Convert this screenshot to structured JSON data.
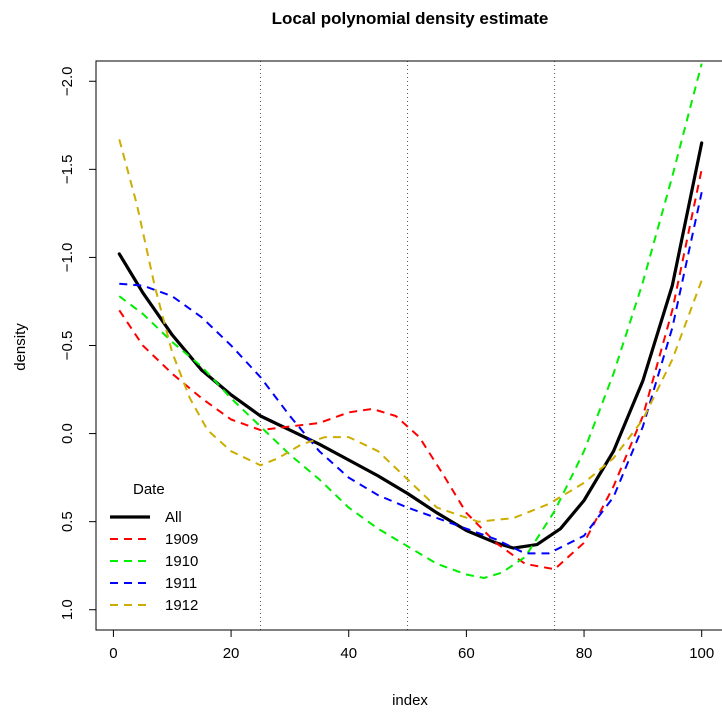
{
  "chart_data": {
    "type": "line",
    "title": "Local polynomial density estimate",
    "xlabel": "index",
    "ylabel": "density",
    "xlim": [
      -2.96,
      103.96
    ],
    "ylim": [
      1.115,
      -2.115
    ],
    "y_reversed": true,
    "grid": false,
    "x_ticks": [
      0,
      20,
      40,
      60,
      80,
      100
    ],
    "y_ticks": [
      -2.0,
      -1.5,
      -1.0,
      -0.5,
      0.0,
      0.5,
      1.0
    ],
    "x_tick_labels": [
      "0",
      "20",
      "40",
      "60",
      "80",
      "100"
    ],
    "y_tick_labels": [
      "−2.0",
      "−1.5",
      "−1.0",
      "−0.5",
      "0.0",
      "0.5",
      "1.0"
    ],
    "vlines": [
      25,
      50,
      75
    ],
    "legend": {
      "title": "Date",
      "position": "bottom-left",
      "entries": [
        "All",
        "1909",
        "1910",
        "1911",
        "1912"
      ]
    },
    "colors": {
      "All": "#000000",
      "1909": "#ff0000",
      "1910": "#00ee00",
      "1911": "#0000ff",
      "1912": "#cdad00"
    },
    "series": [
      {
        "name": "All",
        "style": "solid",
        "points": [
          [
            1,
            -1.02
          ],
          [
            5,
            -0.8
          ],
          [
            10,
            -0.56
          ],
          [
            15,
            -0.36
          ],
          [
            20,
            -0.22
          ],
          [
            25,
            -0.1
          ],
          [
            30,
            -0.02
          ],
          [
            35,
            0.06
          ],
          [
            40,
            0.15
          ],
          [
            45,
            0.24
          ],
          [
            50,
            0.34
          ],
          [
            55,
            0.45
          ],
          [
            60,
            0.55
          ],
          [
            65,
            0.62
          ],
          [
            68,
            0.65
          ],
          [
            72,
            0.63
          ],
          [
            76,
            0.54
          ],
          [
            80,
            0.38
          ],
          [
            85,
            0.1
          ],
          [
            90,
            -0.3
          ],
          [
            95,
            -0.84
          ],
          [
            100,
            -1.65
          ]
        ]
      },
      {
        "name": "1909",
        "style": "dashed",
        "points": [
          [
            1,
            -0.7
          ],
          [
            5,
            -0.5
          ],
          [
            10,
            -0.34
          ],
          [
            15,
            -0.2
          ],
          [
            20,
            -0.08
          ],
          [
            25,
            -0.02
          ],
          [
            30,
            -0.04
          ],
          [
            35,
            -0.06
          ],
          [
            40,
            -0.12
          ],
          [
            44,
            -0.14
          ],
          [
            48,
            -0.1
          ],
          [
            52,
            0.02
          ],
          [
            56,
            0.23
          ],
          [
            60,
            0.45
          ],
          [
            65,
            0.62
          ],
          [
            70,
            0.74
          ],
          [
            75,
            0.77
          ],
          [
            80,
            0.62
          ],
          [
            85,
            0.3
          ],
          [
            90,
            -0.1
          ],
          [
            95,
            -0.7
          ],
          [
            100,
            -1.5
          ]
        ]
      },
      {
        "name": "1910",
        "style": "dashed",
        "points": [
          [
            1,
            -0.78
          ],
          [
            5,
            -0.68
          ],
          [
            10,
            -0.52
          ],
          [
            15,
            -0.38
          ],
          [
            20,
            -0.2
          ],
          [
            25,
            -0.04
          ],
          [
            30,
            0.12
          ],
          [
            35,
            0.26
          ],
          [
            40,
            0.42
          ],
          [
            45,
            0.54
          ],
          [
            50,
            0.64
          ],
          [
            55,
            0.74
          ],
          [
            60,
            0.8
          ],
          [
            63,
            0.82
          ],
          [
            66,
            0.79
          ],
          [
            70,
            0.7
          ],
          [
            75,
            0.44
          ],
          [
            80,
            0.1
          ],
          [
            85,
            -0.34
          ],
          [
            90,
            -0.86
          ],
          [
            95,
            -1.46
          ],
          [
            100,
            -2.1
          ]
        ]
      },
      {
        "name": "1911",
        "style": "dashed",
        "points": [
          [
            1,
            -0.85
          ],
          [
            5,
            -0.84
          ],
          [
            10,
            -0.78
          ],
          [
            15,
            -0.66
          ],
          [
            20,
            -0.5
          ],
          [
            25,
            -0.32
          ],
          [
            30,
            -0.1
          ],
          [
            35,
            0.1
          ],
          [
            40,
            0.25
          ],
          [
            45,
            0.35
          ],
          [
            50,
            0.42
          ],
          [
            55,
            0.48
          ],
          [
            60,
            0.54
          ],
          [
            65,
            0.6
          ],
          [
            70,
            0.68
          ],
          [
            74,
            0.68
          ],
          [
            80,
            0.58
          ],
          [
            85,
            0.36
          ],
          [
            90,
            -0.04
          ],
          [
            95,
            -0.6
          ],
          [
            100,
            -1.37
          ]
        ]
      },
      {
        "name": "1912",
        "style": "dashed",
        "points": [
          [
            1,
            -1.67
          ],
          [
            4,
            -1.3
          ],
          [
            7,
            -0.84
          ],
          [
            10,
            -0.46
          ],
          [
            13,
            -0.2
          ],
          [
            16,
            -0.02
          ],
          [
            20,
            0.1
          ],
          [
            25,
            0.18
          ],
          [
            28,
            0.14
          ],
          [
            32,
            0.06
          ],
          [
            36,
            0.02
          ],
          [
            40,
            0.02
          ],
          [
            45,
            0.1
          ],
          [
            50,
            0.26
          ],
          [
            55,
            0.42
          ],
          [
            62,
            0.5
          ],
          [
            68,
            0.48
          ],
          [
            74,
            0.4
          ],
          [
            80,
            0.28
          ],
          [
            85,
            0.14
          ],
          [
            90,
            -0.08
          ],
          [
            95,
            -0.42
          ],
          [
            100,
            -0.87
          ]
        ]
      }
    ]
  }
}
